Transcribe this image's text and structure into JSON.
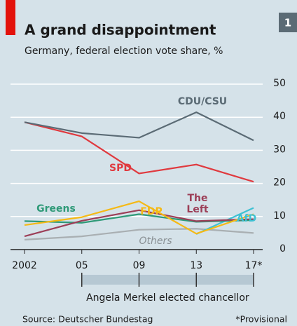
{
  "chart_data": {
    "type": "line",
    "title": "A grand disappointment",
    "subtitle": "Germany, federal election vote share, %",
    "badge": "1",
    "categories": [
      "2002",
      "05",
      "09",
      "13",
      "17*"
    ],
    "series": [
      {
        "name": "CDU/CSU",
        "color": "#5b6b75",
        "values": [
          38.5,
          35.2,
          33.8,
          41.5,
          33.0
        ]
      },
      {
        "name": "SPD",
        "color": "#e0393e",
        "values": [
          38.5,
          34.2,
          23.0,
          25.7,
          20.5
        ]
      },
      {
        "name": "FDP",
        "color": "#f5b915",
        "values": [
          7.4,
          9.8,
          14.6,
          4.8,
          10.7
        ]
      },
      {
        "name": "The Left",
        "color": "#9c3e57",
        "values": [
          4.0,
          8.7,
          11.9,
          8.6,
          9.2
        ]
      },
      {
        "name": "Greens",
        "color": "#2f9a78",
        "values": [
          8.6,
          8.1,
          10.7,
          8.4,
          8.9
        ]
      },
      {
        "name": "AfD",
        "color": "#3ec1d3",
        "values": [
          null,
          null,
          null,
          4.7,
          12.6
        ]
      },
      {
        "name": "Others",
        "color": "#a9afb2",
        "values": [
          3.0,
          4.0,
          6.0,
          6.3,
          5.0
        ]
      }
    ],
    "ylim": [
      0,
      50
    ],
    "yticks": [
      0,
      10,
      20,
      30,
      40,
      50
    ],
    "grid": true,
    "annotation": "Angela Merkel elected chancellor",
    "source": "Source: Deutscher Bundestag",
    "note": "*Provisional"
  }
}
